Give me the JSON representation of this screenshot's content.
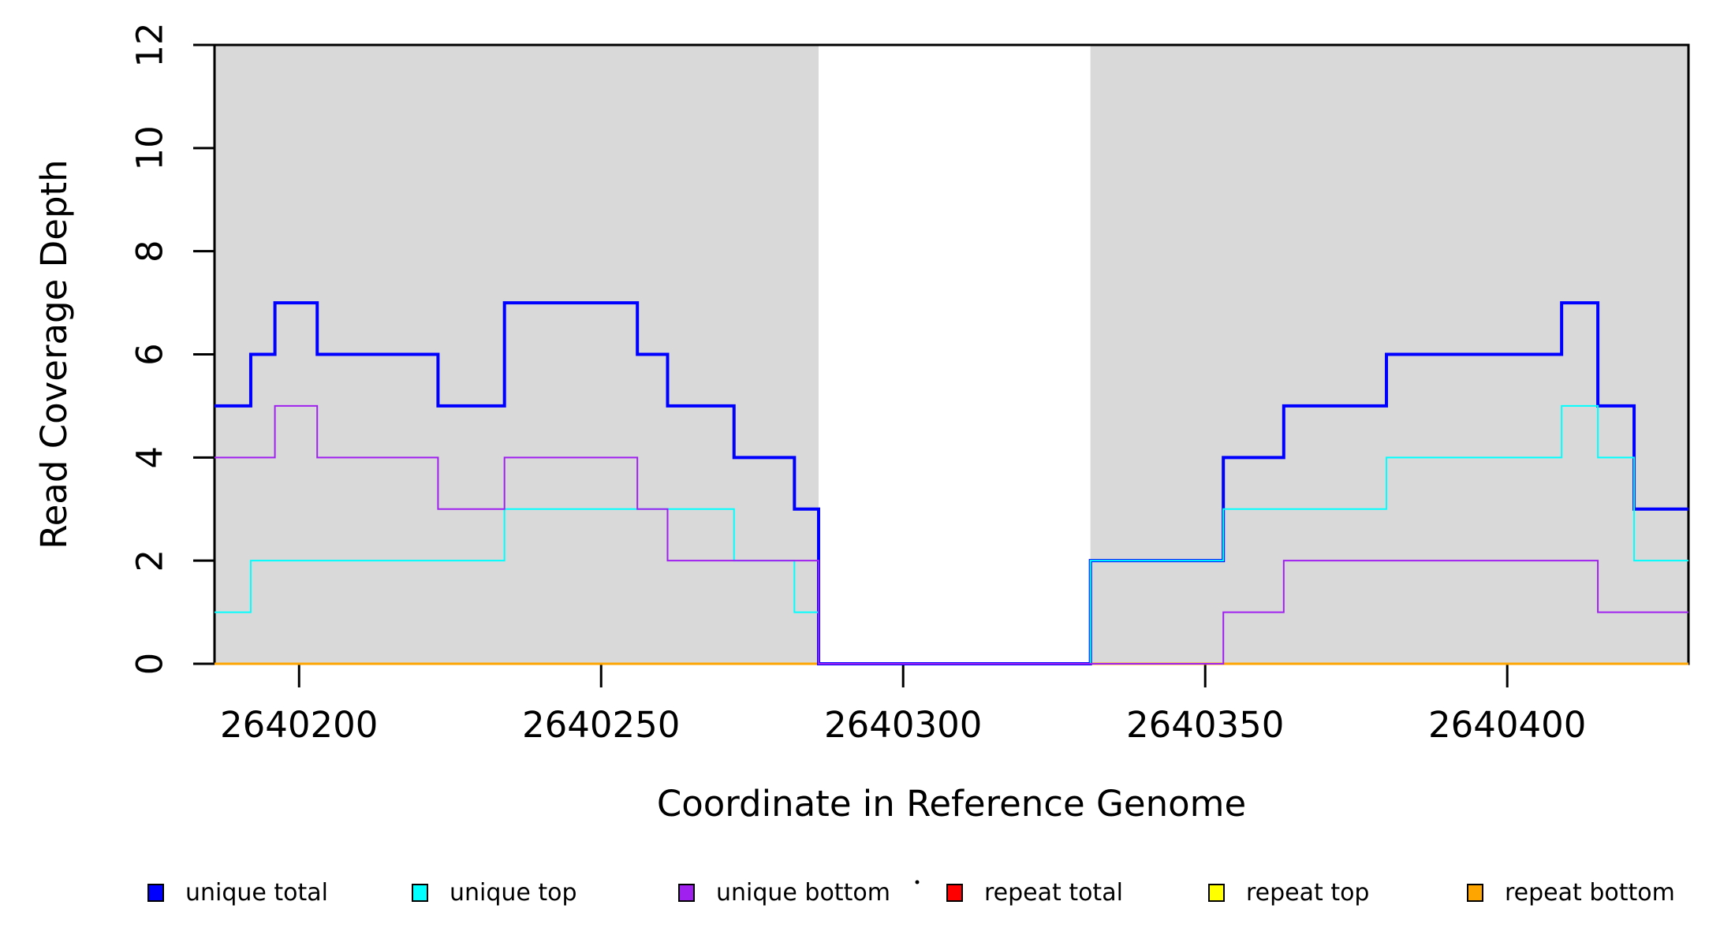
{
  "figure": {
    "background": "#ffffff",
    "plot_area_color": "#ffffff",
    "shading_color": "#d9d9d9",
    "axis_color": "#000000"
  },
  "chart_data": {
    "type": "line",
    "subtype": "step-post-coverage",
    "title": "",
    "xlabel": "Coordinate in Reference Genome",
    "ylabel": "Read Coverage Depth",
    "xlim": [
      2640186,
      2640430
    ],
    "ylim": [
      0,
      12
    ],
    "x_ticks": [
      2640200,
      2640250,
      2640300,
      2640350,
      2640400
    ],
    "x_tick_labels": [
      "2640200",
      "2640250",
      "2640300",
      "2640350",
      "2640400"
    ],
    "y_ticks": [
      0,
      2,
      4,
      6,
      8,
      10,
      12
    ],
    "y_tick_labels": [
      "0",
      "2",
      "4",
      "6",
      "8",
      "10",
      "12"
    ],
    "grid": false,
    "legend_position": "bottom",
    "shaded_regions": [
      {
        "name": "aligned-region-left",
        "x0": 2640186,
        "x1": 2640286
      },
      {
        "name": "aligned-region-right",
        "x0": 2640331,
        "x1": 2640430
      }
    ],
    "gap_region": {
      "x0": 2640286,
      "x1": 2640331
    },
    "series": [
      {
        "name": "repeat total",
        "color": "#FF0000",
        "width": 2,
        "points": [
          [
            2640186,
            0
          ],
          [
            2640430,
            0
          ]
        ]
      },
      {
        "name": "repeat top",
        "color": "#FFFF00",
        "width": 2,
        "points": [
          [
            2640186,
            0
          ],
          [
            2640430,
            0
          ]
        ]
      },
      {
        "name": "repeat bottom",
        "color": "#FFA500",
        "width": 3,
        "points": [
          [
            2640186,
            0
          ],
          [
            2640430,
            0
          ]
        ]
      },
      {
        "name": "unique total",
        "color": "#0000FF",
        "width": 4,
        "points": [
          [
            2640186,
            5
          ],
          [
            2640192,
            6
          ],
          [
            2640196,
            7
          ],
          [
            2640203,
            6
          ],
          [
            2640223,
            5
          ],
          [
            2640234,
            7
          ],
          [
            2640256,
            6
          ],
          [
            2640261,
            5
          ],
          [
            2640272,
            4
          ],
          [
            2640282,
            3
          ],
          [
            2640286,
            0
          ],
          [
            2640331,
            2
          ],
          [
            2640353,
            4
          ],
          [
            2640363,
            5
          ],
          [
            2640380,
            6
          ],
          [
            2640409,
            7
          ],
          [
            2640415,
            5
          ],
          [
            2640421,
            3
          ],
          [
            2640430,
            3
          ]
        ]
      },
      {
        "name": "unique top",
        "color": "#00FFFF",
        "width": 2,
        "points": [
          [
            2640186,
            1
          ],
          [
            2640192,
            2
          ],
          [
            2640234,
            3
          ],
          [
            2640272,
            2
          ],
          [
            2640282,
            1
          ],
          [
            2640286,
            0
          ],
          [
            2640331,
            2
          ],
          [
            2640353,
            3
          ],
          [
            2640380,
            4
          ],
          [
            2640409,
            5
          ],
          [
            2640415,
            4
          ],
          [
            2640421,
            2
          ],
          [
            2640430,
            2
          ]
        ]
      },
      {
        "name": "unique bottom",
        "color": "#A020F0",
        "width": 2,
        "points": [
          [
            2640186,
            4
          ],
          [
            2640196,
            5
          ],
          [
            2640203,
            4
          ],
          [
            2640223,
            3
          ],
          [
            2640234,
            4
          ],
          [
            2640256,
            3
          ],
          [
            2640261,
            2
          ],
          [
            2640286,
            0
          ],
          [
            2640353,
            1
          ],
          [
            2640363,
            2
          ],
          [
            2640415,
            1
          ],
          [
            2640430,
            1
          ]
        ]
      }
    ]
  },
  "legend": {
    "items": [
      {
        "label": "unique total",
        "color": "#0000FF"
      },
      {
        "label": "unique top",
        "color": "#00FFFF"
      },
      {
        "label": "unique bottom",
        "color": "#A020F0"
      },
      {
        "label": "repeat total",
        "color": "#FF0000"
      },
      {
        "label": "repeat top",
        "color": "#FFFF00"
      },
      {
        "label": "repeat bottom",
        "color": "#FFA500"
      }
    ]
  }
}
